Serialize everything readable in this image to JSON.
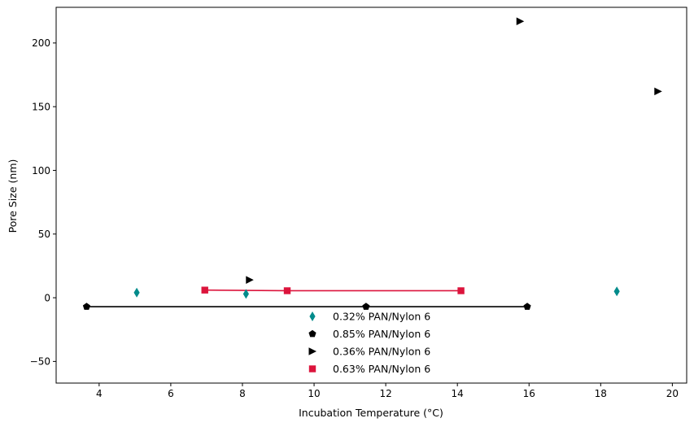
{
  "chart_data": {
    "type": "scatter",
    "title": "",
    "xlabel": "Incubation Temperature (°C)",
    "ylabel": "Pore Size (nm)",
    "xlim": [
      2.8,
      20.4
    ],
    "ylim": [
      -67,
      228
    ],
    "xticks": [
      4,
      6,
      8,
      10,
      12,
      14,
      16,
      18,
      20
    ],
    "yticks": [
      -50,
      0,
      50,
      100,
      150,
      200
    ],
    "grid": false,
    "legend_position": "bottom-center",
    "series": [
      {
        "name": "0.32% PAN/Nylon 6",
        "marker": "thin-diamond",
        "color": "#008b8b",
        "line": false,
        "x": [
          5.05,
          8.1,
          18.45
        ],
        "y": [
          4,
          3,
          5
        ]
      },
      {
        "name": "0.85% PAN/Nylon 6",
        "marker": "pentagon",
        "color": "#000000",
        "line": true,
        "x": [
          3.65,
          11.45,
          15.95
        ],
        "y": [
          -7,
          -7,
          -7
        ]
      },
      {
        "name": "0.36% PAN/Nylon 6",
        "marker": "triangle-right",
        "color": "#000000",
        "line": false,
        "x": [
          8.2,
          15.75,
          19.6
        ],
        "y": [
          14,
          217,
          162
        ]
      },
      {
        "name": "0.63% PAN/Nylon 6",
        "marker": "square",
        "color": "#dc143c",
        "line": true,
        "x": [
          6.95,
          9.25,
          14.1
        ],
        "y": [
          6,
          5.5,
          5.5
        ]
      }
    ]
  }
}
